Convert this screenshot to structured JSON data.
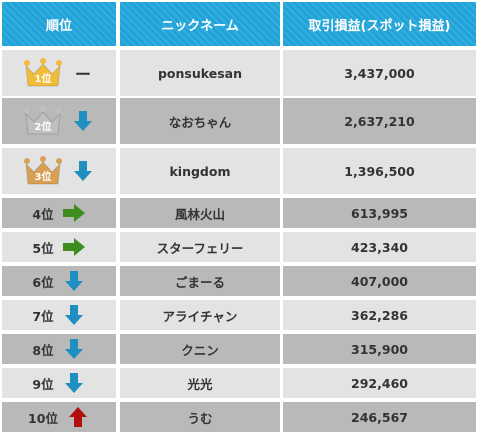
{
  "header": {
    "rank": "順位",
    "nickname": "ニックネーム",
    "profit": "取引損益(スポット損益)"
  },
  "colors": {
    "gold": "#f1bc3a",
    "silver": "#bfbfbf",
    "bronze": "#d9a055",
    "down": "#1e8fc0",
    "same_right": "#3e8e1f",
    "up": "#b20f0f",
    "header_bg": "#1fa3d8"
  },
  "rows": [
    {
      "rank": "1位",
      "nickname": "ponsukesan",
      "profit": "3,437,000",
      "trend": "dash",
      "trend_text": "ー",
      "crown": "gold"
    },
    {
      "rank": "2位",
      "nickname": "なおちゃん",
      "profit": "2,637,210",
      "trend": "down",
      "crown": "silver"
    },
    {
      "rank": "3位",
      "nickname": "kingdom",
      "profit": "1,396,500",
      "trend": "down",
      "crown": "bronze"
    },
    {
      "rank": "4位",
      "nickname": "風林火山",
      "profit": "613,995",
      "trend": "right"
    },
    {
      "rank": "5位",
      "nickname": "スターフェリー",
      "profit": "423,340",
      "trend": "right"
    },
    {
      "rank": "6位",
      "nickname": "ごまーる",
      "profit": "407,000",
      "trend": "down"
    },
    {
      "rank": "7位",
      "nickname": "アライチャン",
      "profit": "362,286",
      "trend": "down"
    },
    {
      "rank": "8位",
      "nickname": "クニン",
      "profit": "315,900",
      "trend": "down"
    },
    {
      "rank": "9位",
      "nickname": "光光",
      "profit": "292,460",
      "trend": "down"
    },
    {
      "rank": "10位",
      "nickname": "うむ",
      "profit": "246,567",
      "trend": "up"
    }
  ]
}
